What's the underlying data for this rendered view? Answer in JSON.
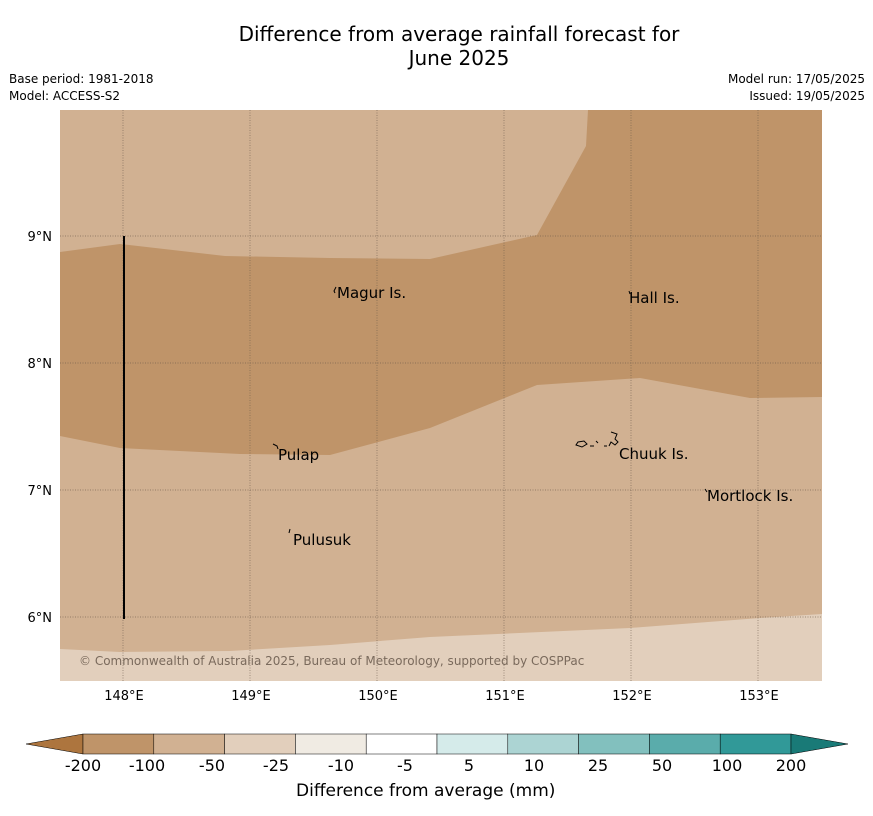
{
  "title_line1": "Difference from average rainfall forecast for",
  "title_line2": "June 2025",
  "base_period": "Base period: 1981-2018",
  "model": "Model: ACCESS-S2",
  "model_run": "Model run: 17/05/2025",
  "issued": "Issued: 19/05/2025",
  "copyright": "© Commonwealth of Australia 2025, Bureau of Meteorology, supported by COSPPac",
  "lat_labels": [
    "9°N",
    "8°N",
    "7°N",
    "6°N"
  ],
  "lon_labels": [
    "148°E",
    "149°E",
    "150°E",
    "151°E",
    "152°E",
    "153°E"
  ],
  "places": [
    "Magur Is.",
    "Hall Is.",
    "Pulap",
    "Chuuk Is.",
    "Mortlock Is.",
    "Pulusuk"
  ],
  "colorbar": {
    "labels": [
      "-200",
      "-100",
      "-50",
      "-25",
      "-10",
      "-5",
      "5",
      "10",
      "25",
      "50",
      "100",
      "200"
    ],
    "colors": [
      "#ad753e",
      "#bf9469",
      "#d1b192",
      "#e2cfbc",
      "#f0ebe3",
      "#ffffff",
      "#d5ebea",
      "#acd4d3",
      "#82c0be",
      "#5aacab",
      "#319998",
      "#197a77"
    ],
    "title": "Difference from average (mm)"
  },
  "zone_colors": {
    "dark": "#bf9469",
    "mid": "#d1b192",
    "light": "#e2cfbc"
  }
}
